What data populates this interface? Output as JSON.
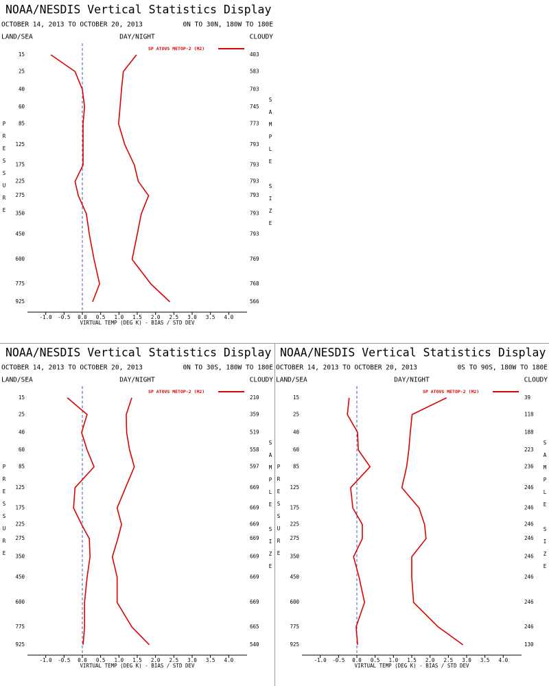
{
  "chart_data": [
    {
      "type": "line",
      "title": "NOAA/NESDIS Vertical Statistics Display",
      "subtitle": "OCTOBER 14, 2013 TO OCTOBER 20, 2013",
      "region": "0N TO 30N, 180W TO 180E",
      "left_header": "LAND/SEA",
      "center_header": "DAY/NIGHT",
      "right_header": "CLOUDY",
      "legend": "SP ATOVS METOP-2 (M2)",
      "color": "#dd0000",
      "y_label": "PRESSURE",
      "y2_label": "SAMPLE SIZE",
      "x_label": "VIRTUAL TEMP (DEG K) - BIAS / STD DEV",
      "levels": [
        15,
        25,
        40,
        60,
        85,
        125,
        175,
        225,
        275,
        350,
        450,
        600,
        775,
        925
      ],
      "series": [
        {
          "values": [
            -0.86,
            -0.2,
            0.0,
            0.06,
            0.02,
            0.02,
            0.02,
            -0.2,
            -0.11,
            0.11,
            0.19,
            0.32,
            0.47,
            0.28
          ]
        },
        {
          "values": [
            1.48,
            1.12,
            1.07,
            1.03,
            0.99,
            1.16,
            1.42,
            1.53,
            1.81,
            1.61,
            1.5,
            1.36,
            1.87,
            2.39
          ]
        }
      ],
      "sample_sizes": [
        403,
        583,
        703,
        745,
        773,
        793,
        793,
        793,
        793,
        793,
        793,
        769,
        768,
        566
      ],
      "ylim": [
        10,
        1000
      ],
      "yticks": [
        15,
        25,
        40,
        60,
        85,
        125,
        175,
        225,
        275,
        350,
        450,
        600,
        775,
        925
      ],
      "xlim": [
        -1.5,
        4.5
      ],
      "xticks": [
        {
          "value": -1,
          "label": "-1.0"
        },
        {
          "value": -0.5,
          "label": "-0.5"
        },
        {
          "value": 0,
          "label": "0.0"
        },
        0.5,
        {
          "value": 1,
          "label": "1.0"
        },
        1.5,
        {
          "value": 2,
          "label": "2.0"
        },
        2.5,
        {
          "value": 3,
          "label": "3.0"
        },
        3.5,
        {
          "value": 4,
          "label": "4.0"
        }
      ]
    },
    {
      "type": "line",
      "title": "NOAA/NESDIS Vertical Statistics Display",
      "subtitle": "OCTOBER 14, 2013 TO OCTOBER 20, 2013",
      "region": "0N TO 30S, 180W TO 180E",
      "left_header": "LAND/SEA",
      "center_header": "DAY/NIGHT",
      "right_header": "CLOUDY",
      "legend": "SP ATOVS METOP-2 (M2)",
      "color": "#dd0000",
      "y_label": "PRESSURE",
      "y2_label": "SAMPLE SIZE",
      "x_label": "VIRTUAL TEMP (DEG K) - BIAS / STD DEV",
      "levels": [
        15,
        25,
        40,
        60,
        85,
        125,
        175,
        225,
        275,
        350,
        450,
        600,
        775,
        925
      ],
      "series": [
        {
          "values": [
            -0.41,
            0.13,
            -0.02,
            0.13,
            0.32,
            -0.2,
            -0.24,
            -0.02,
            0.19,
            0.21,
            0.13,
            0.06,
            0.06,
            0.02
          ]
        },
        {
          "values": [
            1.35,
            1.2,
            1.21,
            1.29,
            1.42,
            1.18,
            0.95,
            1.07,
            0.97,
            0.82,
            0.95,
            0.95,
            1.35,
            1.83
          ]
        }
      ],
      "sample_sizes": [
        210,
        359,
        519,
        558,
        597,
        669,
        669,
        669,
        669,
        669,
        669,
        669,
        665,
        540
      ],
      "ylim": [
        10,
        1000
      ],
      "yticks": [
        15,
        25,
        40,
        60,
        85,
        125,
        175,
        225,
        275,
        350,
        450,
        600,
        775,
        925
      ],
      "xlim": [
        -1.5,
        4.5
      ],
      "xticks": [
        {
          "value": -1,
          "label": "-1.0"
        },
        {
          "value": -0.5,
          "label": "-0.5"
        },
        {
          "value": 0,
          "label": "0.0"
        },
        0.5,
        {
          "value": 1,
          "label": "1.0"
        },
        1.5,
        {
          "value": 2,
          "label": "2.0"
        },
        2.5,
        {
          "value": 3,
          "label": "3.0"
        },
        3.5,
        {
          "value": 4,
          "label": "4.0"
        }
      ]
    },
    {
      "type": "line",
      "title": "NOAA/NESDIS Vertical Statistics Display",
      "subtitle": "OCTOBER 14, 2013 TO OCTOBER 20, 2013",
      "region": "0S TO 90S, 180W TO 180E",
      "left_header": "LAND/SEA",
      "center_header": "DAY/NIGHT",
      "right_header": "CLOUDY",
      "legend": "SP ATOVS METOP-2 (M2)",
      "color": "#dd0000",
      "y_label": "PRESSURE",
      "y2_label": "SAMPLE SIZE",
      "x_label": "VIRTUAL TEMP (DEG K) - BIAS / STD DEV",
      "levels": [
        15,
        25,
        40,
        60,
        85,
        125,
        175,
        225,
        275,
        350,
        450,
        600,
        775,
        925
      ],
      "series": [
        {
          "values": [
            -0.21,
            -0.26,
            0.02,
            0.04,
            0.36,
            -0.17,
            -0.11,
            0.15,
            0.15,
            -0.09,
            0.06,
            0.21,
            -0.02,
            0.02
          ]
        },
        {
          "values": [
            2.45,
            1.51,
            1.46,
            1.42,
            1.36,
            1.23,
            1.7,
            1.85,
            1.89,
            1.5,
            1.5,
            1.55,
            2.22,
            2.9
          ]
        }
      ],
      "sample_sizes": [
        39,
        118,
        188,
        223,
        236,
        246,
        246,
        246,
        246,
        246,
        246,
        246,
        246,
        130
      ],
      "ylim": [
        10,
        1000
      ],
      "yticks": [
        15,
        25,
        40,
        60,
        85,
        125,
        175,
        225,
        275,
        350,
        450,
        600,
        775,
        925
      ],
      "xlim": [
        -1.5,
        4.5
      ],
      "xticks": [
        {
          "value": -1,
          "label": "-1.0"
        },
        {
          "value": -0.5,
          "label": "-0.5"
        },
        {
          "value": 0,
          "label": "0.0"
        },
        0.5,
        {
          "value": 1,
          "label": "1.0"
        },
        1.5,
        {
          "value": 2,
          "label": "2.0"
        },
        2.5,
        {
          "value": 3,
          "label": "3.0"
        },
        3.5,
        {
          "value": 4,
          "label": "4.0"
        }
      ]
    }
  ]
}
